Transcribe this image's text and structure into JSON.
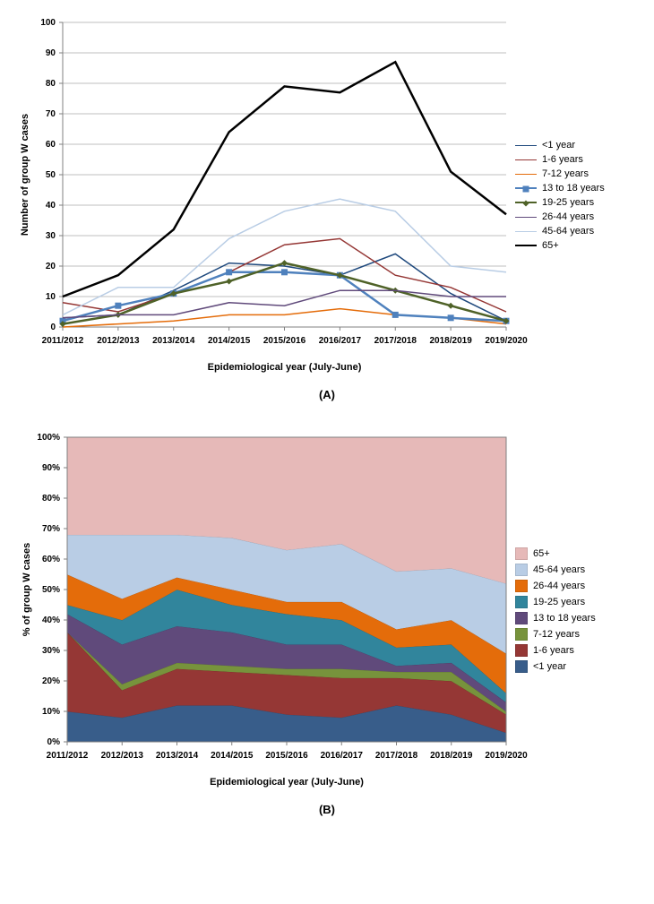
{
  "categories": [
    "2011/2012",
    "2012/2013",
    "2013/2014",
    "2014/2015",
    "2015/2016",
    "2016/2017",
    "2017/2018",
    "2018/2019",
    "2019/2020"
  ],
  "xlabel": "Epidemiological year (July-June)",
  "chart_a": {
    "type": "line",
    "ylabel": "Number of group W cases",
    "ylim": [
      0,
      100
    ],
    "ytick_step": 10,
    "background_color": "#ffffff",
    "grid_color": "#bfbfbf",
    "panel_label": "(A)",
    "series": [
      {
        "name": "<1 year",
        "color": "#1f497d",
        "width": 1.5,
        "marker": "none",
        "markerSize": 0,
        "values": [
          3,
          4,
          12,
          21,
          20,
          17,
          24,
          11,
          2
        ]
      },
      {
        "name": "1-6 years",
        "color": "#953735",
        "width": 1.5,
        "marker": "none",
        "markerSize": 0,
        "values": [
          8,
          5,
          11,
          18,
          27,
          29,
          17,
          13,
          5
        ]
      },
      {
        "name": "7-12 years",
        "color": "#e46c0a",
        "width": 1.5,
        "marker": "none",
        "markerSize": 0,
        "values": [
          0,
          1,
          2,
          4,
          4,
          6,
          4,
          3,
          1
        ]
      },
      {
        "name": "13 to 18 years",
        "color": "#4f81bd",
        "width": 2.5,
        "marker": "square",
        "markerSize": 5,
        "values": [
          2,
          7,
          11,
          18,
          18,
          17,
          4,
          3,
          2
        ]
      },
      {
        "name": "19-25 years",
        "color": "#4f6228",
        "width": 2.5,
        "marker": "diamond",
        "markerSize": 5,
        "values": [
          1,
          4,
          11,
          15,
          21,
          17,
          12,
          7,
          2
        ]
      },
      {
        "name": "26-44 years",
        "color": "#604a7b",
        "width": 1.5,
        "marker": "none",
        "markerSize": 0,
        "values": [
          3,
          4,
          4,
          8,
          7,
          12,
          12,
          10,
          10
        ]
      },
      {
        "name": "45-64 years",
        "color": "#b9cde5",
        "width": 1.5,
        "marker": "none",
        "markerSize": 0,
        "values": [
          4,
          13,
          13,
          29,
          38,
          42,
          38,
          20,
          18
        ]
      },
      {
        "name": "65+",
        "color": "#000000",
        "width": 2.5,
        "marker": "none",
        "markerSize": 0,
        "values": [
          10,
          17,
          32,
          64,
          79,
          77,
          87,
          51,
          37
        ]
      }
    ]
  },
  "chart_b": {
    "type": "stacked-area-percent",
    "ylabel": "% of group W cases",
    "ylim": [
      0,
      100
    ],
    "ytick_step": 10,
    "ytick_suffix": "%",
    "panel_label": "(B)",
    "plot_border_color": "#808080",
    "grid_color": "#808080",
    "legend_order": [
      "65+",
      "45-64 years",
      "26-44 years",
      "19-25 years",
      "13 to 18 years",
      "7-12 years",
      "1-6 years",
      "<1 year"
    ],
    "series": [
      {
        "name": "<1 year",
        "color": "#385d8a",
        "values": [
          10,
          8,
          12,
          12,
          9,
          8,
          12,
          9,
          3
        ]
      },
      {
        "name": "1-6 years",
        "color": "#953735",
        "values": [
          26,
          9,
          12,
          11,
          13,
          13,
          9,
          11,
          6
        ]
      },
      {
        "name": "7-12 years",
        "color": "#77933c",
        "values": [
          0,
          2,
          2,
          2,
          2,
          3,
          2,
          3,
          1
        ]
      },
      {
        "name": "13 to 18 years",
        "color": "#604a7b",
        "values": [
          6,
          13,
          12,
          11,
          8,
          8,
          2,
          3,
          3
        ]
      },
      {
        "name": "19-25 years",
        "color": "#31859c",
        "values": [
          3,
          8,
          12,
          9,
          10,
          8,
          6,
          6,
          3
        ]
      },
      {
        "name": "26-44 years",
        "color": "#e46c0a",
        "values": [
          10,
          7,
          4,
          5,
          4,
          6,
          6,
          8,
          13
        ]
      },
      {
        "name": "45-64 years",
        "color": "#b9cde5",
        "values": [
          13,
          21,
          14,
          17,
          17,
          19,
          19,
          17,
          23
        ]
      },
      {
        "name": "65+",
        "color": "#e6b9b8",
        "values": [
          32,
          32,
          32,
          33,
          37,
          35,
          44,
          43,
          48
        ]
      }
    ]
  },
  "typography": {
    "axis_label_fontsize": 12,
    "axis_label_fontweight": "bold",
    "tick_fontsize": 10,
    "tick_fontweight": "bold",
    "legend_fontsize": 11
  }
}
